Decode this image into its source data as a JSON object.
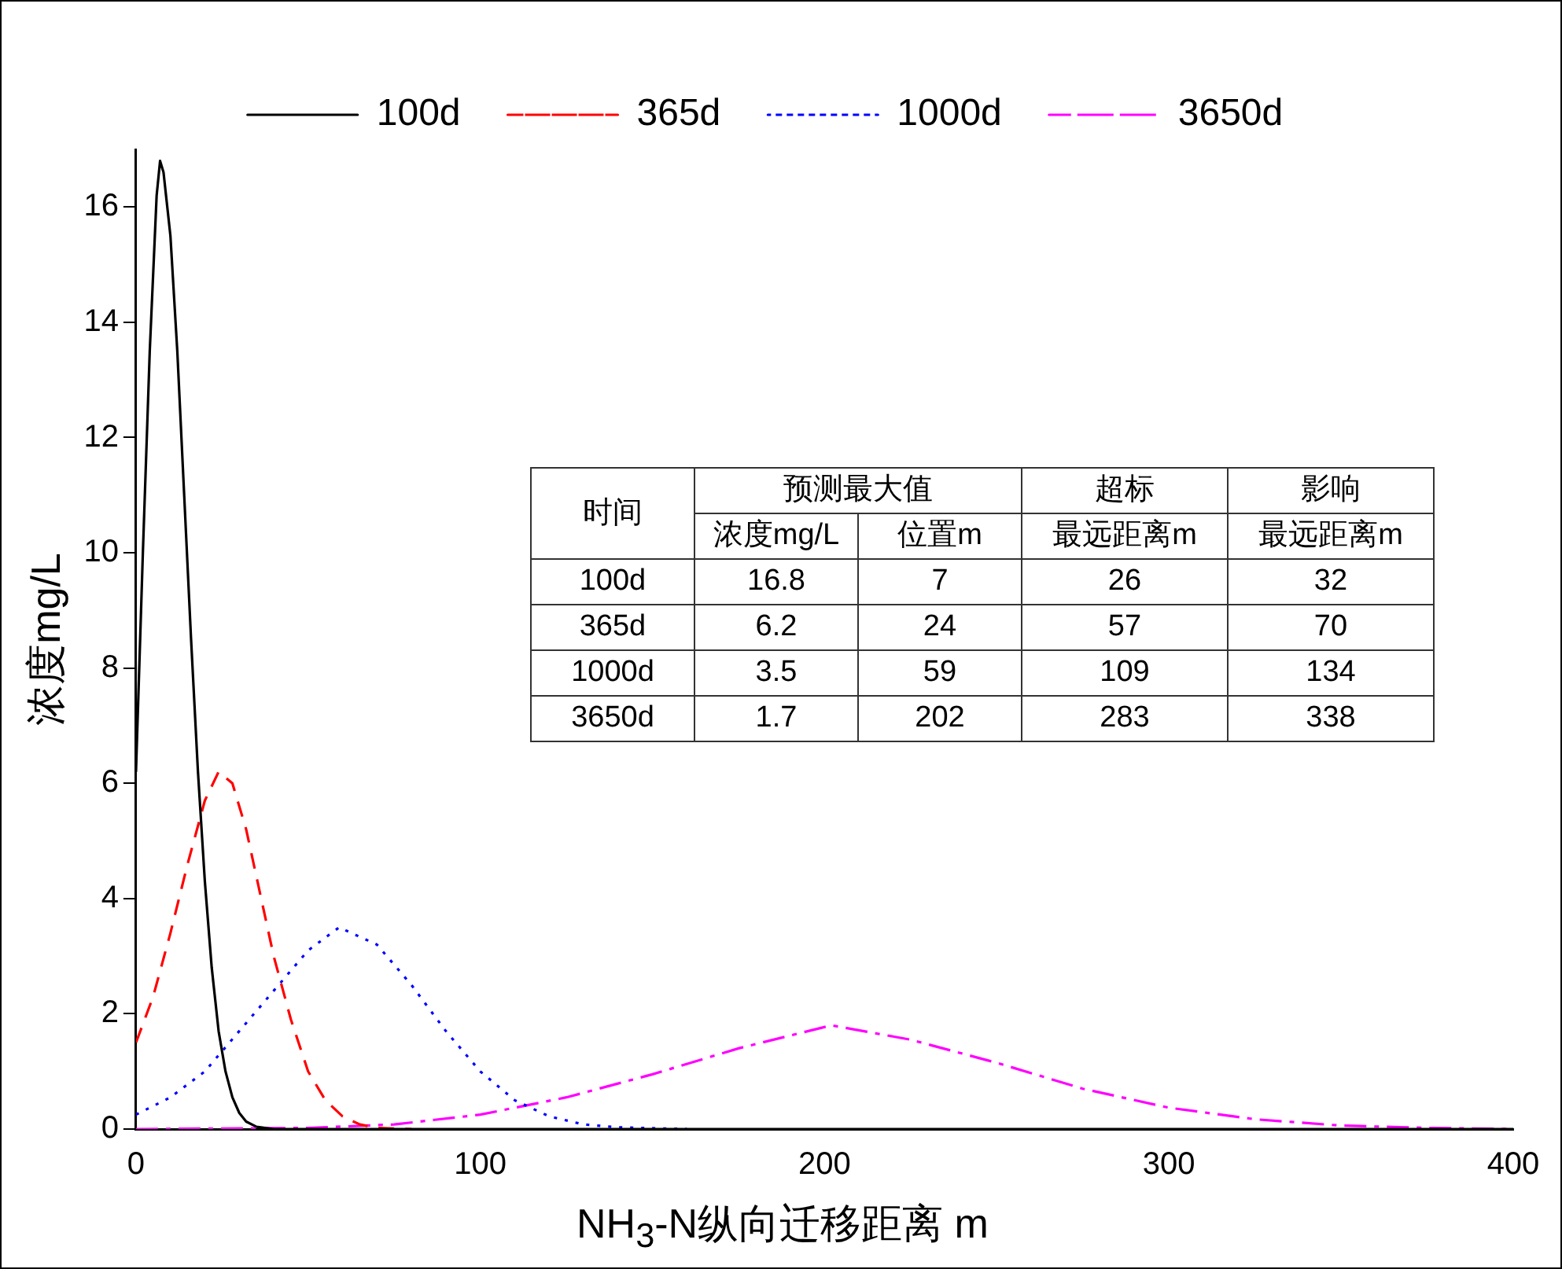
{
  "chart_data": {
    "type": "line",
    "xlabel": "NH$_{3}$-N纵向迁移距离 m",
    "ylabel": "浓度mg/L",
    "xlim": [
      0,
      400
    ],
    "xticks": [
      0,
      100,
      200,
      300,
      400
    ],
    "ylim": [
      0,
      17
    ],
    "yticks": [
      0,
      2,
      4,
      6,
      8,
      10,
      12,
      14,
      16
    ],
    "grid": false,
    "legend": "top",
    "marker": "none",
    "series": [
      {
        "name": "100d",
        "color": "#000000",
        "line_style": "solid",
        "x": [
          0,
          2,
          4,
          6,
          7,
          8,
          10,
          12,
          14,
          16,
          18,
          20,
          22,
          24,
          26,
          28,
          30,
          32,
          35,
          40,
          400
        ],
        "values": [
          6.2,
          10,
          13.5,
          16.2,
          16.8,
          16.6,
          15.5,
          13.5,
          11,
          8.5,
          6.2,
          4.3,
          2.8,
          1.7,
          1,
          0.55,
          0.28,
          0.13,
          0.04,
          0,
          0
        ]
      },
      {
        "name": "365d",
        "color": "#ff0000",
        "line_style": "dashed",
        "x": [
          0,
          5,
          10,
          15,
          20,
          24,
          28,
          32,
          36,
          40,
          45,
          50,
          55,
          60,
          65,
          70,
          80
        ],
        "values": [
          1.5,
          2.3,
          3.4,
          4.6,
          5.7,
          6.2,
          6,
          5.2,
          4.1,
          3,
          1.9,
          1,
          0.5,
          0.22,
          0.08,
          0.02,
          0
        ]
      },
      {
        "name": "1000d",
        "color": "#0000ff",
        "line_style": "dotted",
        "x": [
          0,
          10,
          20,
          30,
          40,
          50,
          59,
          70,
          80,
          90,
          100,
          110,
          120,
          130,
          140,
          160
        ],
        "values": [
          0.25,
          0.55,
          1,
          1.7,
          2.4,
          3.1,
          3.5,
          3.2,
          2.5,
          1.7,
          1,
          0.5,
          0.22,
          0.08,
          0.03,
          0
        ]
      },
      {
        "name": "3650d",
        "color": "#ff00ff",
        "line_style": "dashdot",
        "x": [
          0,
          50,
          75,
          100,
          125,
          150,
          175,
          202,
          225,
          250,
          275,
          300,
          325,
          350,
          375,
          400
        ],
        "values": [
          0,
          0.02,
          0.08,
          0.25,
          0.55,
          0.95,
          1.4,
          1.8,
          1.55,
          1.15,
          0.7,
          0.37,
          0.17,
          0.06,
          0.02,
          0
        ]
      }
    ],
    "annotations": [
      "时间",
      "预测最大值",
      "超标",
      "影响",
      "浓度mg/L",
      "位置m",
      "最远距离m",
      "最远距离m",
      "100d",
      "16.8",
      "7",
      "26",
      "32",
      "365d",
      "6.2",
      "24",
      "57",
      "70",
      "1000d",
      "3.5",
      "59",
      "109",
      "134",
      "3650d",
      "1.7",
      "202",
      "283",
      "338"
    ]
  }
}
